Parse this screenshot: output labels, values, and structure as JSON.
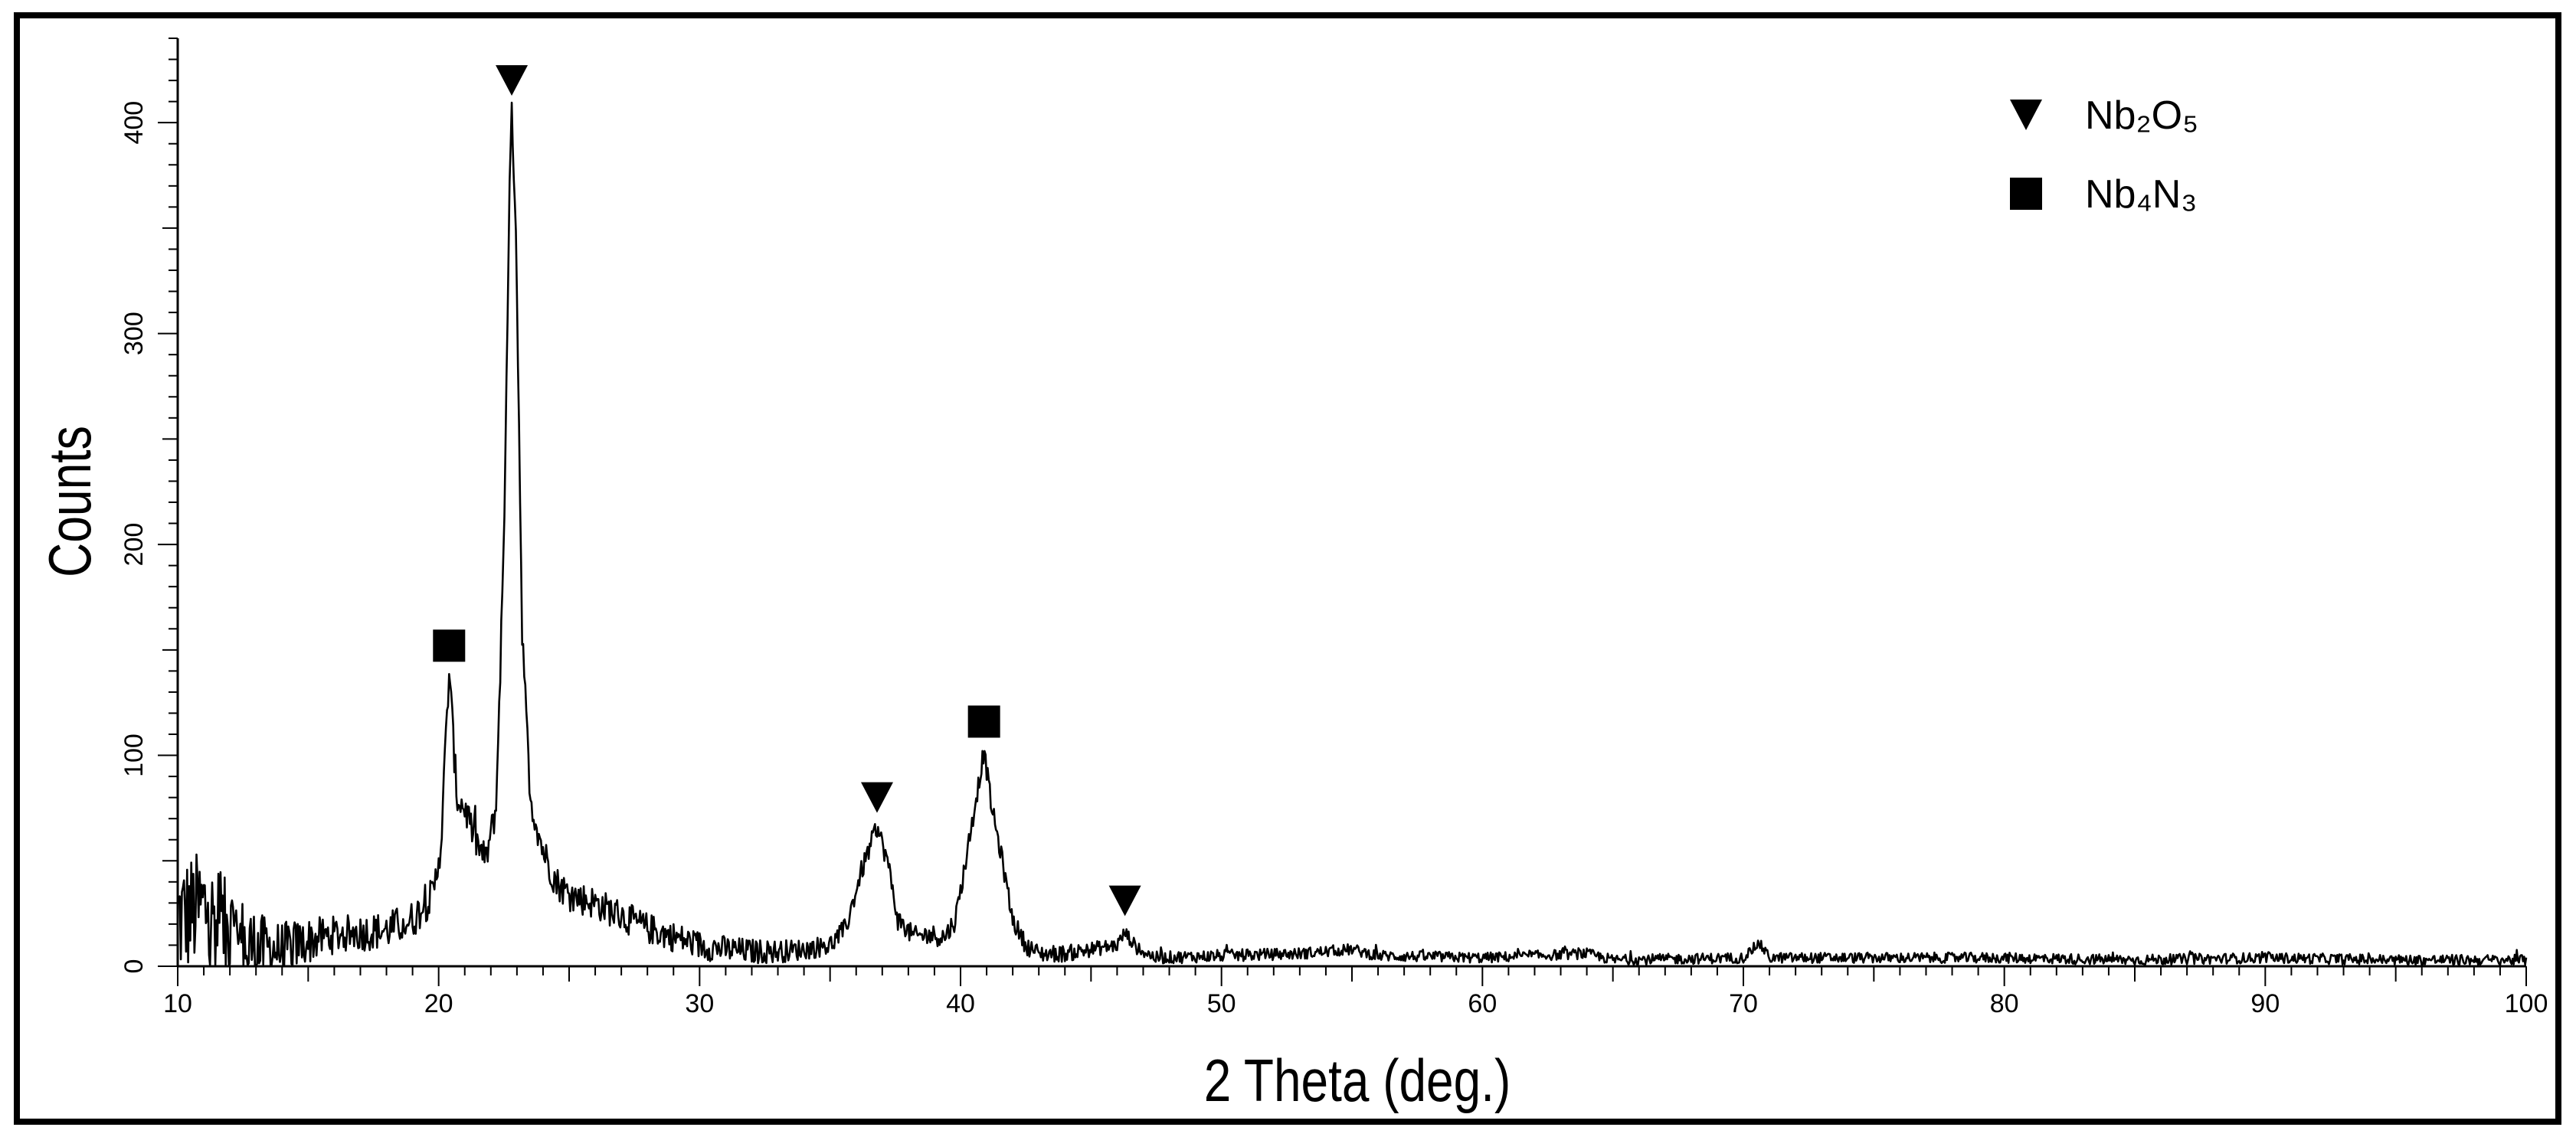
{
  "chart_data": {
    "type": "line",
    "title": "",
    "xlabel": "2 Theta (deg.)",
    "ylabel": "Counts",
    "xlim": [
      10,
      100
    ],
    "ylim": [
      0,
      440
    ],
    "x_ticks": [
      10,
      20,
      30,
      40,
      50,
      60,
      70,
      80,
      90,
      100
    ],
    "y_ticks": [
      0,
      100,
      200,
      300,
      400
    ],
    "grid": false,
    "legend_placement": "top-right",
    "legend": [
      {
        "marker": "triangle-down",
        "label": "Nb₂O₅"
      },
      {
        "marker": "square",
        "label": "Nb₄N₃"
      }
    ],
    "peak_markers": [
      {
        "phase": "Nb₄N₃",
        "marker": "square",
        "x": 20.4,
        "y": 152
      },
      {
        "phase": "Nb₂O₅",
        "marker": "triangle-down",
        "x": 22.8,
        "y": 420
      },
      {
        "phase": "Nb₂O₅",
        "marker": "triangle-down",
        "x": 36.8,
        "y": 80
      },
      {
        "phase": "Nb₄N₃",
        "marker": "square",
        "x": 40.9,
        "y": 116
      },
      {
        "phase": "Nb₂O₅",
        "marker": "triangle-down",
        "x": 46.3,
        "y": 31
      }
    ],
    "series": [
      {
        "profile": [
          [
            10,
            22
          ],
          [
            11,
            28
          ],
          [
            12,
            14
          ],
          [
            13,
            9
          ],
          [
            14,
            8
          ],
          [
            15,
            12
          ],
          [
            16,
            15
          ],
          [
            17,
            16
          ],
          [
            18,
            17
          ],
          [
            19,
            22
          ],
          [
            19.8,
            34
          ],
          [
            20.1,
            60
          ],
          [
            20.4,
            140
          ],
          [
            20.7,
            80
          ],
          [
            21,
            75
          ],
          [
            21.4,
            60
          ],
          [
            21.8,
            50
          ],
          [
            22.2,
            75
          ],
          [
            22.5,
            200
          ],
          [
            22.7,
            360
          ],
          [
            22.8,
            402
          ],
          [
            22.95,
            360
          ],
          [
            23.2,
            160
          ],
          [
            23.5,
            80
          ],
          [
            24,
            55
          ],
          [
            24.5,
            40
          ],
          [
            25,
            34
          ],
          [
            26,
            30
          ],
          [
            27,
            24
          ],
          [
            28,
            18
          ],
          [
            29,
            14
          ],
          [
            30,
            10
          ],
          [
            31,
            8
          ],
          [
            32,
            7
          ],
          [
            33,
            7
          ],
          [
            34,
            8
          ],
          [
            35,
            10
          ],
          [
            35.6,
            18
          ],
          [
            36.2,
            45
          ],
          [
            36.8,
            66
          ],
          [
            37.2,
            50
          ],
          [
            37.6,
            22
          ],
          [
            38.2,
            14
          ],
          [
            38.8,
            15
          ],
          [
            39.4,
            14
          ],
          [
            39.8,
            22
          ],
          [
            40.2,
            50
          ],
          [
            40.6,
            80
          ],
          [
            40.9,
            102
          ],
          [
            41.2,
            75
          ],
          [
            41.6,
            50
          ],
          [
            42,
            22
          ],
          [
            42.5,
            10
          ],
          [
            43,
            6
          ],
          [
            44,
            6
          ],
          [
            45,
            8
          ],
          [
            46,
            10
          ],
          [
            46.3,
            16
          ],
          [
            46.8,
            8
          ],
          [
            47.5,
            4
          ],
          [
            50,
            5
          ],
          [
            53,
            6
          ],
          [
            55,
            8
          ],
          [
            56,
            5
          ],
          [
            60,
            4
          ],
          [
            64,
            6
          ],
          [
            65,
            3
          ],
          [
            70,
            4
          ],
          [
            70.6,
            11
          ],
          [
            71,
            4
          ],
          [
            80,
            4
          ],
          [
            85,
            3
          ],
          [
            90,
            4
          ],
          [
            95,
            3
          ],
          [
            100,
            3
          ]
        ],
        "noise": [
          [
            10,
            30
          ],
          [
            12,
            25
          ],
          [
            13.5,
            14
          ],
          [
            16,
            9
          ],
          [
            19,
            9
          ],
          [
            21.5,
            8
          ],
          [
            25,
            8
          ],
          [
            30,
            7
          ],
          [
            34,
            5
          ],
          [
            40,
            5
          ],
          [
            44,
            4
          ],
          [
            47,
            3
          ],
          [
            60,
            2.5
          ],
          [
            100,
            2.5
          ]
        ]
      }
    ]
  }
}
